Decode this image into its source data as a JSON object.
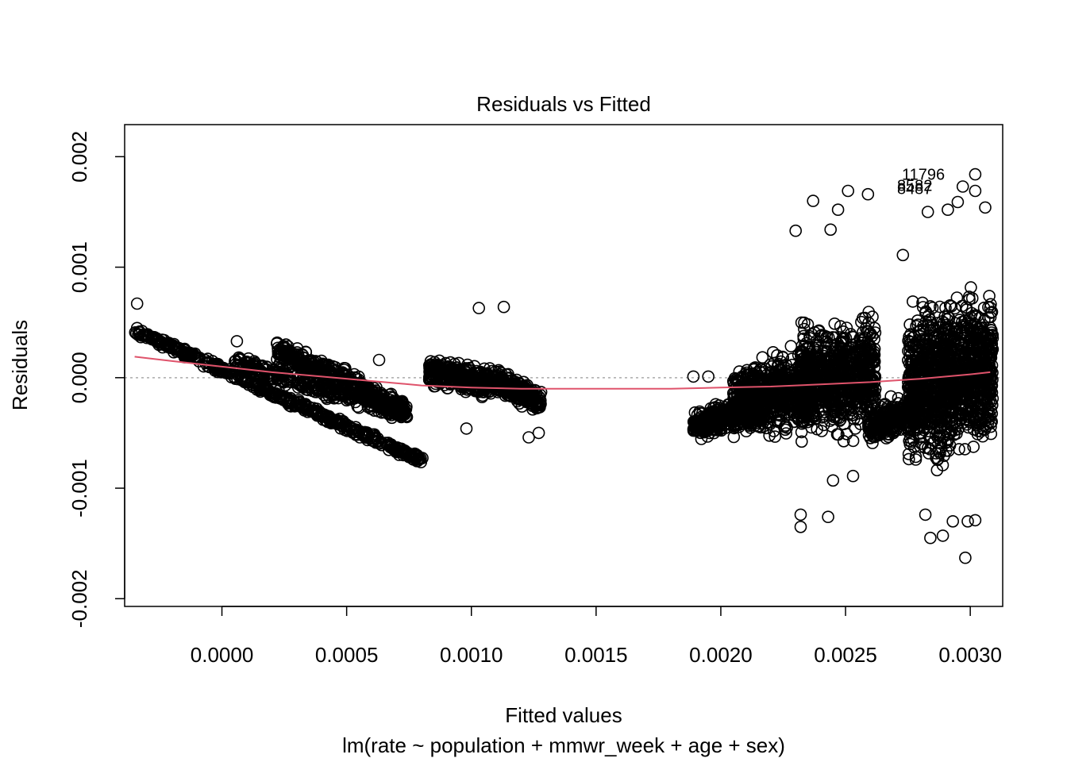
{
  "chart_data": {
    "type": "scatter",
    "title": "Residuals vs Fitted",
    "xlabel": "Fitted values",
    "subtitle": "lm(rate ~ population + mmwr_week + age + sex)",
    "ylabel": "Residuals",
    "xlim": [
      -0.00039,
      0.00313
    ],
    "ylim": [
      -0.00207,
      0.00229
    ],
    "x_ticks": [
      0.0,
      0.0005,
      0.001,
      0.0015,
      0.002,
      0.0025,
      0.003
    ],
    "x_tick_labels": [
      "0.0000",
      "0.0005",
      "0.0010",
      "0.0015",
      "0.0020",
      "0.0025",
      "0.0030"
    ],
    "y_ticks": [
      -0.002,
      -0.001,
      0.0,
      0.001,
      0.002
    ],
    "y_tick_labels": [
      "-0.002",
      "-0.001",
      "0.000",
      "0.001",
      "0.002"
    ],
    "reference_line": {
      "y": 0,
      "style": "dotted",
      "color": "#aaaaaa"
    },
    "smooth_color": "#df536b",
    "point_color": "#000000",
    "smooth": {
      "x": [
        -0.00035,
        -0.0002,
        0.0,
        0.0002,
        0.0004,
        0.0006,
        0.0008,
        0.001,
        0.0012,
        0.0014,
        0.0016,
        0.0018,
        0.002,
        0.0022,
        0.0024,
        0.0026,
        0.0028,
        0.003,
        0.00308
      ],
      "y": [
        0.00019,
        0.00015,
        0.0001,
        5e-05,
        1e-05,
        -3e-05,
        -7e-05,
        -9e-05,
        -0.0001,
        -0.0001,
        -0.0001,
        -0.0001,
        -9e-05,
        -8e-05,
        -6e-05,
        -4e-05,
        -1e-05,
        3e-05,
        5e-05
      ]
    },
    "point_labels": [
      {
        "text": "11796",
        "x": 0.00293,
        "y": 0.00184
      },
      {
        "text": "8582",
        "x": 0.00288,
        "y": 0.00174
      },
      {
        "text": "8487",
        "x": 0.00288,
        "y": 0.00171
      }
    ],
    "outliers": [
      {
        "x": -0.00034,
        "y": 0.00067
      },
      {
        "x": 6e-05,
        "y": 0.00033
      },
      {
        "x": 0.00063,
        "y": 0.00016
      },
      {
        "x": 0.00103,
        "y": 0.00063
      },
      {
        "x": 0.00113,
        "y": 0.00064
      },
      {
        "x": 0.00123,
        "y": -0.00054
      },
      {
        "x": 0.00127,
        "y": -0.0005
      },
      {
        "x": 0.00098,
        "y": -0.00046
      },
      {
        "x": 0.00189,
        "y": 1e-05
      },
      {
        "x": 0.00195,
        "y": 1e-05
      },
      {
        "x": 0.00232,
        "y": -0.00124
      },
      {
        "x": 0.00232,
        "y": -0.00135
      },
      {
        "x": 0.00243,
        "y": -0.00126
      },
      {
        "x": 0.00245,
        "y": -0.00093
      },
      {
        "x": 0.00253,
        "y": -0.00089
      },
      {
        "x": 0.00237,
        "y": 0.0016
      },
      {
        "x": 0.00251,
        "y": 0.00169
      },
      {
        "x": 0.00259,
        "y": 0.00166
      },
      {
        "x": 0.0023,
        "y": 0.00133
      },
      {
        "x": 0.00247,
        "y": 0.00152
      },
      {
        "x": 0.00244,
        "y": 0.00134
      },
      {
        "x": 0.00273,
        "y": 0.00111
      },
      {
        "x": 0.00284,
        "y": -0.00145
      },
      {
        "x": 0.00289,
        "y": -0.00143
      },
      {
        "x": 0.00293,
        "y": -0.0013
      },
      {
        "x": 0.00298,
        "y": -0.00163
      },
      {
        "x": 0.00302,
        "y": -0.00129
      },
      {
        "x": 0.00299,
        "y": -0.0013
      },
      {
        "x": 0.00282,
        "y": -0.00124
      },
      {
        "x": 0.00302,
        "y": 0.00184
      },
      {
        "x": 0.00297,
        "y": 0.00173
      },
      {
        "x": 0.00302,
        "y": 0.00169
      },
      {
        "x": 0.00295,
        "y": 0.00159
      },
      {
        "x": 0.00306,
        "y": 0.00154
      },
      {
        "x": 0.00283,
        "y": 0.0015
      },
      {
        "x": 0.00291,
        "y": 0.00152
      }
    ],
    "clusters": [
      {
        "shape": "band",
        "x0": -0.00035,
        "x1": 0.00081,
        "y0": 0.00043,
        "y1": -0.00076,
        "spread": 3e-05,
        "n": 500
      },
      {
        "shape": "band",
        "x0": 5e-05,
        "x1": 0.00075,
        "y0": 0.00013,
        "y1": -0.00033,
        "spread": 6e-05,
        "n": 320
      },
      {
        "shape": "band",
        "x0": 0.00022,
        "x1": 0.00074,
        "y0": 0.00025,
        "y1": -0.0003,
        "spread": 8e-05,
        "n": 420
      },
      {
        "shape": "blob",
        "x0": 0.00083,
        "x1": 0.00108,
        "ymid_start": 5e-05,
        "ymid_end": -5e-05,
        "spread": 9e-05,
        "n": 380
      },
      {
        "shape": "blob",
        "x0": 0.00108,
        "x1": 0.00128,
        "ymid_start": 0.0,
        "ymid_end": -0.00022,
        "spread": 8e-05,
        "n": 240
      },
      {
        "shape": "blob",
        "x0": 0.00189,
        "x1": 0.00215,
        "ymid_start": -0.00045,
        "ymid_end": -0.00025,
        "spread": 9e-05,
        "n": 360
      },
      {
        "shape": "blob",
        "x0": 0.00205,
        "x1": 0.00237,
        "ymid_start": -0.00025,
        "ymid_end": -5e-05,
        "spread": 0.00025,
        "n": 700
      },
      {
        "shape": "blob",
        "x0": 0.00232,
        "x1": 0.00262,
        "ymid_start": -5e-05,
        "ymid_end": 5e-05,
        "spread": 0.00035,
        "n": 800
      },
      {
        "shape": "blob",
        "x0": 0.00259,
        "x1": 0.00278,
        "ymid_start": -0.00045,
        "ymid_end": -0.0003,
        "spread": 0.00012,
        "n": 260
      },
      {
        "shape": "blob",
        "x0": 0.00275,
        "x1": 0.00309,
        "ymid_start": -0.0001,
        "ymid_end": 0.0001,
        "spread": 0.00048,
        "n": 1300
      }
    ]
  }
}
